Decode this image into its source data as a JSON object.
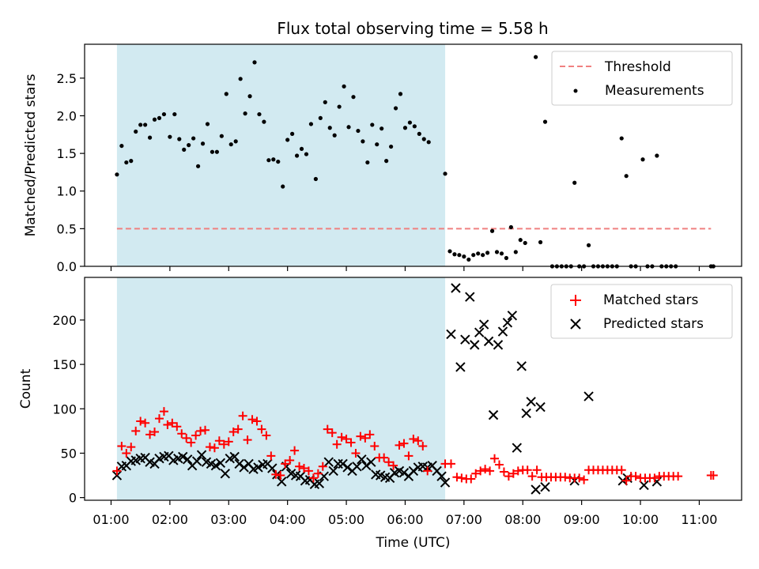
{
  "chart_data": {
    "type": "scatter",
    "title": "Flux total observing time = 5.58 h",
    "xlabel": "Time (UTC)",
    "x_units": "hours UTC",
    "xlim": [
      0.55,
      11.72
    ],
    "xticks": [
      {
        "value": 1,
        "label": "01:00"
      },
      {
        "value": 2,
        "label": "02:00"
      },
      {
        "value": 3,
        "label": "03:00"
      },
      {
        "value": 4,
        "label": "04:00"
      },
      {
        "value": 5,
        "label": "05:00"
      },
      {
        "value": 6,
        "label": "06:00"
      },
      {
        "value": 7,
        "label": "07:00"
      },
      {
        "value": 8,
        "label": "08:00"
      },
      {
        "value": 9,
        "label": "09:00"
      },
      {
        "value": 10,
        "label": "10:00"
      },
      {
        "value": 11,
        "label": "11:00"
      }
    ],
    "shaded_interval": {
      "start": 1.1,
      "end": 6.68,
      "color": "#add8e6"
    },
    "top": {
      "ylabel": "Matched/Predicted stars",
      "ylim": [
        0,
        2.95
      ],
      "yticks": [
        {
          "value": 0,
          "label": "0.0"
        },
        {
          "value": 0.5,
          "label": "0.5"
        },
        {
          "value": 1,
          "label": "1.0"
        },
        {
          "value": 1.5,
          "label": "1.5"
        },
        {
          "value": 2,
          "label": "2.0"
        },
        {
          "value": 2.5,
          "label": "2.5"
        }
      ],
      "legend": [
        {
          "key": "threshold",
          "label": "Threshold",
          "color": "#f08080"
        },
        {
          "key": "measurements",
          "label": "Measurements",
          "color": "#000000"
        }
      ],
      "threshold": {
        "value": 0.5,
        "x_range": [
          1.1,
          11.2
        ]
      },
      "measurements": [
        [
          1.1,
          1.22
        ],
        [
          1.18,
          1.6
        ],
        [
          1.26,
          1.38
        ],
        [
          1.34,
          1.4
        ],
        [
          1.42,
          1.79
        ],
        [
          1.5,
          1.88
        ],
        [
          1.58,
          1.88
        ],
        [
          1.66,
          1.71
        ],
        [
          1.74,
          1.95
        ],
        [
          1.82,
          1.97
        ],
        [
          1.9,
          2.02
        ],
        [
          2.0,
          1.72
        ],
        [
          2.08,
          2.02
        ],
        [
          2.16,
          1.69
        ],
        [
          2.24,
          1.55
        ],
        [
          2.32,
          1.61
        ],
        [
          2.4,
          1.7
        ],
        [
          2.48,
          1.33
        ],
        [
          2.56,
          1.63
        ],
        [
          2.64,
          1.89
        ],
        [
          2.72,
          1.52
        ],
        [
          2.8,
          1.52
        ],
        [
          2.88,
          1.73
        ],
        [
          2.96,
          2.29
        ],
        [
          3.04,
          1.62
        ],
        [
          3.12,
          1.66
        ],
        [
          3.2,
          2.49
        ],
        [
          3.28,
          2.03
        ],
        [
          3.36,
          2.26
        ],
        [
          3.44,
          2.71
        ],
        [
          3.52,
          2.02
        ],
        [
          3.6,
          1.92
        ],
        [
          3.68,
          1.41
        ],
        [
          3.76,
          1.42
        ],
        [
          3.84,
          1.39
        ],
        [
          3.92,
          1.06
        ],
        [
          4.0,
          1.68
        ],
        [
          4.08,
          1.76
        ],
        [
          4.16,
          1.47
        ],
        [
          4.24,
          1.56
        ],
        [
          4.32,
          1.49
        ],
        [
          4.4,
          1.89
        ],
        [
          4.48,
          1.16
        ],
        [
          4.56,
          1.97
        ],
        [
          4.64,
          2.18
        ],
        [
          4.72,
          1.84
        ],
        [
          4.8,
          1.74
        ],
        [
          4.88,
          2.12
        ],
        [
          4.96,
          2.39
        ],
        [
          5.04,
          1.85
        ],
        [
          5.12,
          2.25
        ],
        [
          5.2,
          1.8
        ],
        [
          5.28,
          1.66
        ],
        [
          5.36,
          1.38
        ],
        [
          5.44,
          1.88
        ],
        [
          5.52,
          1.62
        ],
        [
          5.6,
          1.83
        ],
        [
          5.68,
          1.4
        ],
        [
          5.76,
          1.59
        ],
        [
          5.84,
          2.1
        ],
        [
          5.92,
          2.29
        ],
        [
          6.0,
          1.84
        ],
        [
          6.08,
          1.91
        ],
        [
          6.16,
          1.86
        ],
        [
          6.24,
          1.76
        ],
        [
          6.32,
          1.69
        ],
        [
          6.4,
          1.65
        ],
        [
          6.68,
          1.23
        ],
        [
          6.76,
          0.2
        ],
        [
          6.84,
          0.16
        ],
        [
          6.92,
          0.15
        ],
        [
          7.0,
          0.13
        ],
        [
          7.08,
          0.09
        ],
        [
          7.16,
          0.15
        ],
        [
          7.24,
          0.17
        ],
        [
          7.32,
          0.15
        ],
        [
          7.4,
          0.18
        ],
        [
          7.48,
          0.47
        ],
        [
          7.56,
          0.19
        ],
        [
          7.64,
          0.17
        ],
        [
          7.72,
          0.11
        ],
        [
          7.8,
          0.52
        ],
        [
          7.88,
          0.19
        ],
        [
          7.96,
          0.35
        ],
        [
          8.04,
          0.31
        ],
        [
          8.22,
          2.78
        ],
        [
          8.3,
          0.32
        ],
        [
          8.38,
          1.92
        ],
        [
          8.5,
          0.0
        ],
        [
          8.58,
          0.0
        ],
        [
          8.66,
          0.0
        ],
        [
          8.74,
          0.0
        ],
        [
          8.82,
          0.0
        ],
        [
          8.88,
          1.11
        ],
        [
          8.96,
          0.0
        ],
        [
          9.04,
          0.0
        ],
        [
          9.12,
          0.28
        ],
        [
          9.2,
          0.0
        ],
        [
          9.28,
          0.0
        ],
        [
          9.36,
          0.0
        ],
        [
          9.44,
          0.0
        ],
        [
          9.52,
          0.0
        ],
        [
          9.6,
          0.0
        ],
        [
          9.68,
          1.7
        ],
        [
          9.76,
          1.2
        ],
        [
          9.84,
          0.0
        ],
        [
          9.92,
          0.0
        ],
        [
          10.04,
          1.42
        ],
        [
          10.12,
          0.0
        ],
        [
          10.2,
          0.0
        ],
        [
          10.28,
          1.47
        ],
        [
          10.36,
          0.0
        ],
        [
          10.44,
          0.0
        ],
        [
          10.52,
          0.0
        ],
        [
          10.6,
          0.0
        ],
        [
          11.2,
          0.0
        ],
        [
          11.24,
          0.0
        ]
      ]
    },
    "bottom": {
      "ylabel": "Count",
      "ylim": [
        -3,
        248
      ],
      "yticks": [
        {
          "value": 0,
          "label": "0"
        },
        {
          "value": 50,
          "label": "50"
        },
        {
          "value": 100,
          "label": "100"
        },
        {
          "value": 150,
          "label": "150"
        },
        {
          "value": 200,
          "label": "200"
        }
      ],
      "legend": [
        {
          "key": "matched",
          "label": "Matched stars",
          "color": "#ff0000",
          "marker": "+"
        },
        {
          "key": "predicted",
          "label": "Predicted stars",
          "color": "#000000",
          "marker": "x"
        }
      ],
      "matched": [
        [
          1.1,
          30
        ],
        [
          1.18,
          58
        ],
        [
          1.26,
          50
        ],
        [
          1.34,
          57
        ],
        [
          1.42,
          75
        ],
        [
          1.5,
          86
        ],
        [
          1.58,
          84
        ],
        [
          1.66,
          71
        ],
        [
          1.74,
          74
        ],
        [
          1.82,
          89
        ],
        [
          1.9,
          97
        ],
        [
          1.96,
          82
        ],
        [
          2.04,
          84
        ],
        [
          2.12,
          80
        ],
        [
          2.2,
          72
        ],
        [
          2.28,
          67
        ],
        [
          2.36,
          62
        ],
        [
          2.44,
          70
        ],
        [
          2.52,
          75
        ],
        [
          2.6,
          76
        ],
        [
          2.68,
          57
        ],
        [
          2.76,
          56
        ],
        [
          2.84,
          64
        ],
        [
          2.92,
          60
        ],
        [
          3.0,
          63
        ],
        [
          3.08,
          74
        ],
        [
          3.16,
          77
        ],
        [
          3.24,
          92
        ],
        [
          3.32,
          65
        ],
        [
          3.4,
          88
        ],
        [
          3.48,
          86
        ],
        [
          3.56,
          77
        ],
        [
          3.64,
          70
        ],
        [
          3.72,
          47
        ],
        [
          3.8,
          26
        ],
        [
          3.88,
          25
        ],
        [
          3.96,
          38
        ],
        [
          4.04,
          42
        ],
        [
          4.12,
          53
        ],
        [
          4.2,
          35
        ],
        [
          4.28,
          33
        ],
        [
          4.36,
          30
        ],
        [
          4.44,
          22
        ],
        [
          4.52,
          27
        ],
        [
          4.6,
          35
        ],
        [
          4.68,
          77
        ],
        [
          4.76,
          73
        ],
        [
          4.84,
          60
        ],
        [
          4.92,
          68
        ],
        [
          5.0,
          66
        ],
        [
          5.08,
          62
        ],
        [
          5.16,
          50
        ],
        [
          5.24,
          69
        ],
        [
          5.32,
          67
        ],
        [
          5.4,
          71
        ],
        [
          5.48,
          58
        ],
        [
          5.56,
          45
        ],
        [
          5.64,
          45
        ],
        [
          5.72,
          40
        ],
        [
          5.8,
          36
        ],
        [
          5.9,
          59
        ],
        [
          5.98,
          61
        ],
        [
          6.06,
          47
        ],
        [
          6.14,
          66
        ],
        [
          6.22,
          64
        ],
        [
          6.3,
          58
        ],
        [
          6.38,
          30
        ],
        [
          6.68,
          38
        ],
        [
          6.78,
          38
        ],
        [
          6.88,
          23
        ],
        [
          6.96,
          22
        ],
        [
          7.04,
          21
        ],
        [
          7.12,
          21
        ],
        [
          7.2,
          27
        ],
        [
          7.28,
          30
        ],
        [
          7.36,
          32
        ],
        [
          7.44,
          30
        ],
        [
          7.52,
          44
        ],
        [
          7.6,
          37
        ],
        [
          7.68,
          29
        ],
        [
          7.76,
          24
        ],
        [
          7.84,
          27
        ],
        [
          7.92,
          30
        ],
        [
          8.0,
          31
        ],
        [
          8.08,
          31
        ],
        [
          8.16,
          24
        ],
        [
          8.24,
          31
        ],
        [
          8.32,
          23
        ],
        [
          8.4,
          23
        ],
        [
          8.48,
          23
        ],
        [
          8.56,
          23
        ],
        [
          8.64,
          23
        ],
        [
          8.72,
          23
        ],
        [
          8.8,
          22
        ],
        [
          8.88,
          22
        ],
        [
          8.96,
          22
        ],
        [
          9.04,
          20
        ],
        [
          9.12,
          31
        ],
        [
          9.2,
          31
        ],
        [
          9.28,
          31
        ],
        [
          9.36,
          31
        ],
        [
          9.44,
          31
        ],
        [
          9.52,
          31
        ],
        [
          9.6,
          31
        ],
        [
          9.68,
          31
        ],
        [
          9.76,
          19
        ],
        [
          9.84,
          24
        ],
        [
          9.92,
          24
        ],
        [
          10.0,
          22
        ],
        [
          10.08,
          22
        ],
        [
          10.16,
          22
        ],
        [
          10.24,
          22
        ],
        [
          10.32,
          24
        ],
        [
          10.4,
          24
        ],
        [
          10.48,
          24
        ],
        [
          10.56,
          24
        ],
        [
          10.64,
          24
        ],
        [
          11.2,
          25
        ],
        [
          11.24,
          25
        ]
      ],
      "predicted": [
        [
          1.1,
          25
        ],
        [
          1.18,
          35
        ],
        [
          1.26,
          36
        ],
        [
          1.34,
          41
        ],
        [
          1.42,
          42
        ],
        [
          1.5,
          44
        ],
        [
          1.58,
          45
        ],
        [
          1.66,
          40
        ],
        [
          1.74,
          38
        ],
        [
          1.82,
          44
        ],
        [
          1.9,
          46
        ],
        [
          1.98,
          47
        ],
        [
          2.06,
          42
        ],
        [
          2.14,
          44
        ],
        [
          2.22,
          46
        ],
        [
          2.3,
          43
        ],
        [
          2.38,
          36
        ],
        [
          2.46,
          41
        ],
        [
          2.54,
          48
        ],
        [
          2.62,
          40
        ],
        [
          2.7,
          38
        ],
        [
          2.78,
          36
        ],
        [
          2.86,
          39
        ],
        [
          2.94,
          27
        ],
        [
          3.02,
          44
        ],
        [
          3.1,
          46
        ],
        [
          3.18,
          38
        ],
        [
          3.26,
          34
        ],
        [
          3.34,
          38
        ],
        [
          3.42,
          32
        ],
        [
          3.5,
          34
        ],
        [
          3.58,
          37
        ],
        [
          3.66,
          38
        ],
        [
          3.74,
          33
        ],
        [
          3.82,
          26
        ],
        [
          3.9,
          18
        ],
        [
          3.98,
          35
        ],
        [
          4.06,
          27
        ],
        [
          4.14,
          25
        ],
        [
          4.22,
          24
        ],
        [
          4.3,
          19
        ],
        [
          4.38,
          20
        ],
        [
          4.46,
          15
        ],
        [
          4.54,
          16
        ],
        [
          4.62,
          24
        ],
        [
          4.7,
          40
        ],
        [
          4.78,
          30
        ],
        [
          4.86,
          38
        ],
        [
          4.94,
          38
        ],
        [
          5.02,
          34
        ],
        [
          5.1,
          30
        ],
        [
          5.18,
          35
        ],
        [
          5.26,
          43
        ],
        [
          5.34,
          36
        ],
        [
          5.42,
          40
        ],
        [
          5.5,
          26
        ],
        [
          5.58,
          25
        ],
        [
          5.66,
          23
        ],
        [
          5.74,
          22
        ],
        [
          5.82,
          28
        ],
        [
          5.9,
          30
        ],
        [
          5.98,
          28
        ],
        [
          6.06,
          24
        ],
        [
          6.14,
          30
        ],
        [
          6.22,
          34
        ],
        [
          6.3,
          35
        ],
        [
          6.38,
          34
        ],
        [
          6.46,
          36
        ],
        [
          6.54,
          30
        ],
        [
          6.62,
          24
        ],
        [
          6.68,
          17
        ],
        [
          6.78,
          184
        ],
        [
          6.86,
          236
        ],
        [
          6.94,
          147
        ],
        [
          7.02,
          178
        ],
        [
          7.1,
          226
        ],
        [
          7.18,
          172
        ],
        [
          7.26,
          186
        ],
        [
          7.34,
          195
        ],
        [
          7.42,
          176
        ],
        [
          7.5,
          93
        ],
        [
          7.58,
          172
        ],
        [
          7.66,
          187
        ],
        [
          7.74,
          197
        ],
        [
          7.82,
          205
        ],
        [
          7.9,
          56
        ],
        [
          7.98,
          148
        ],
        [
          8.06,
          95
        ],
        [
          8.14,
          108
        ],
        [
          8.22,
          9
        ],
        [
          8.3,
          102
        ],
        [
          8.38,
          12
        ],
        [
          8.88,
          19
        ],
        [
          9.12,
          114
        ],
        [
          9.7,
          19
        ],
        [
          9.78,
          22
        ],
        [
          10.06,
          14
        ],
        [
          10.28,
          18
        ]
      ]
    }
  }
}
